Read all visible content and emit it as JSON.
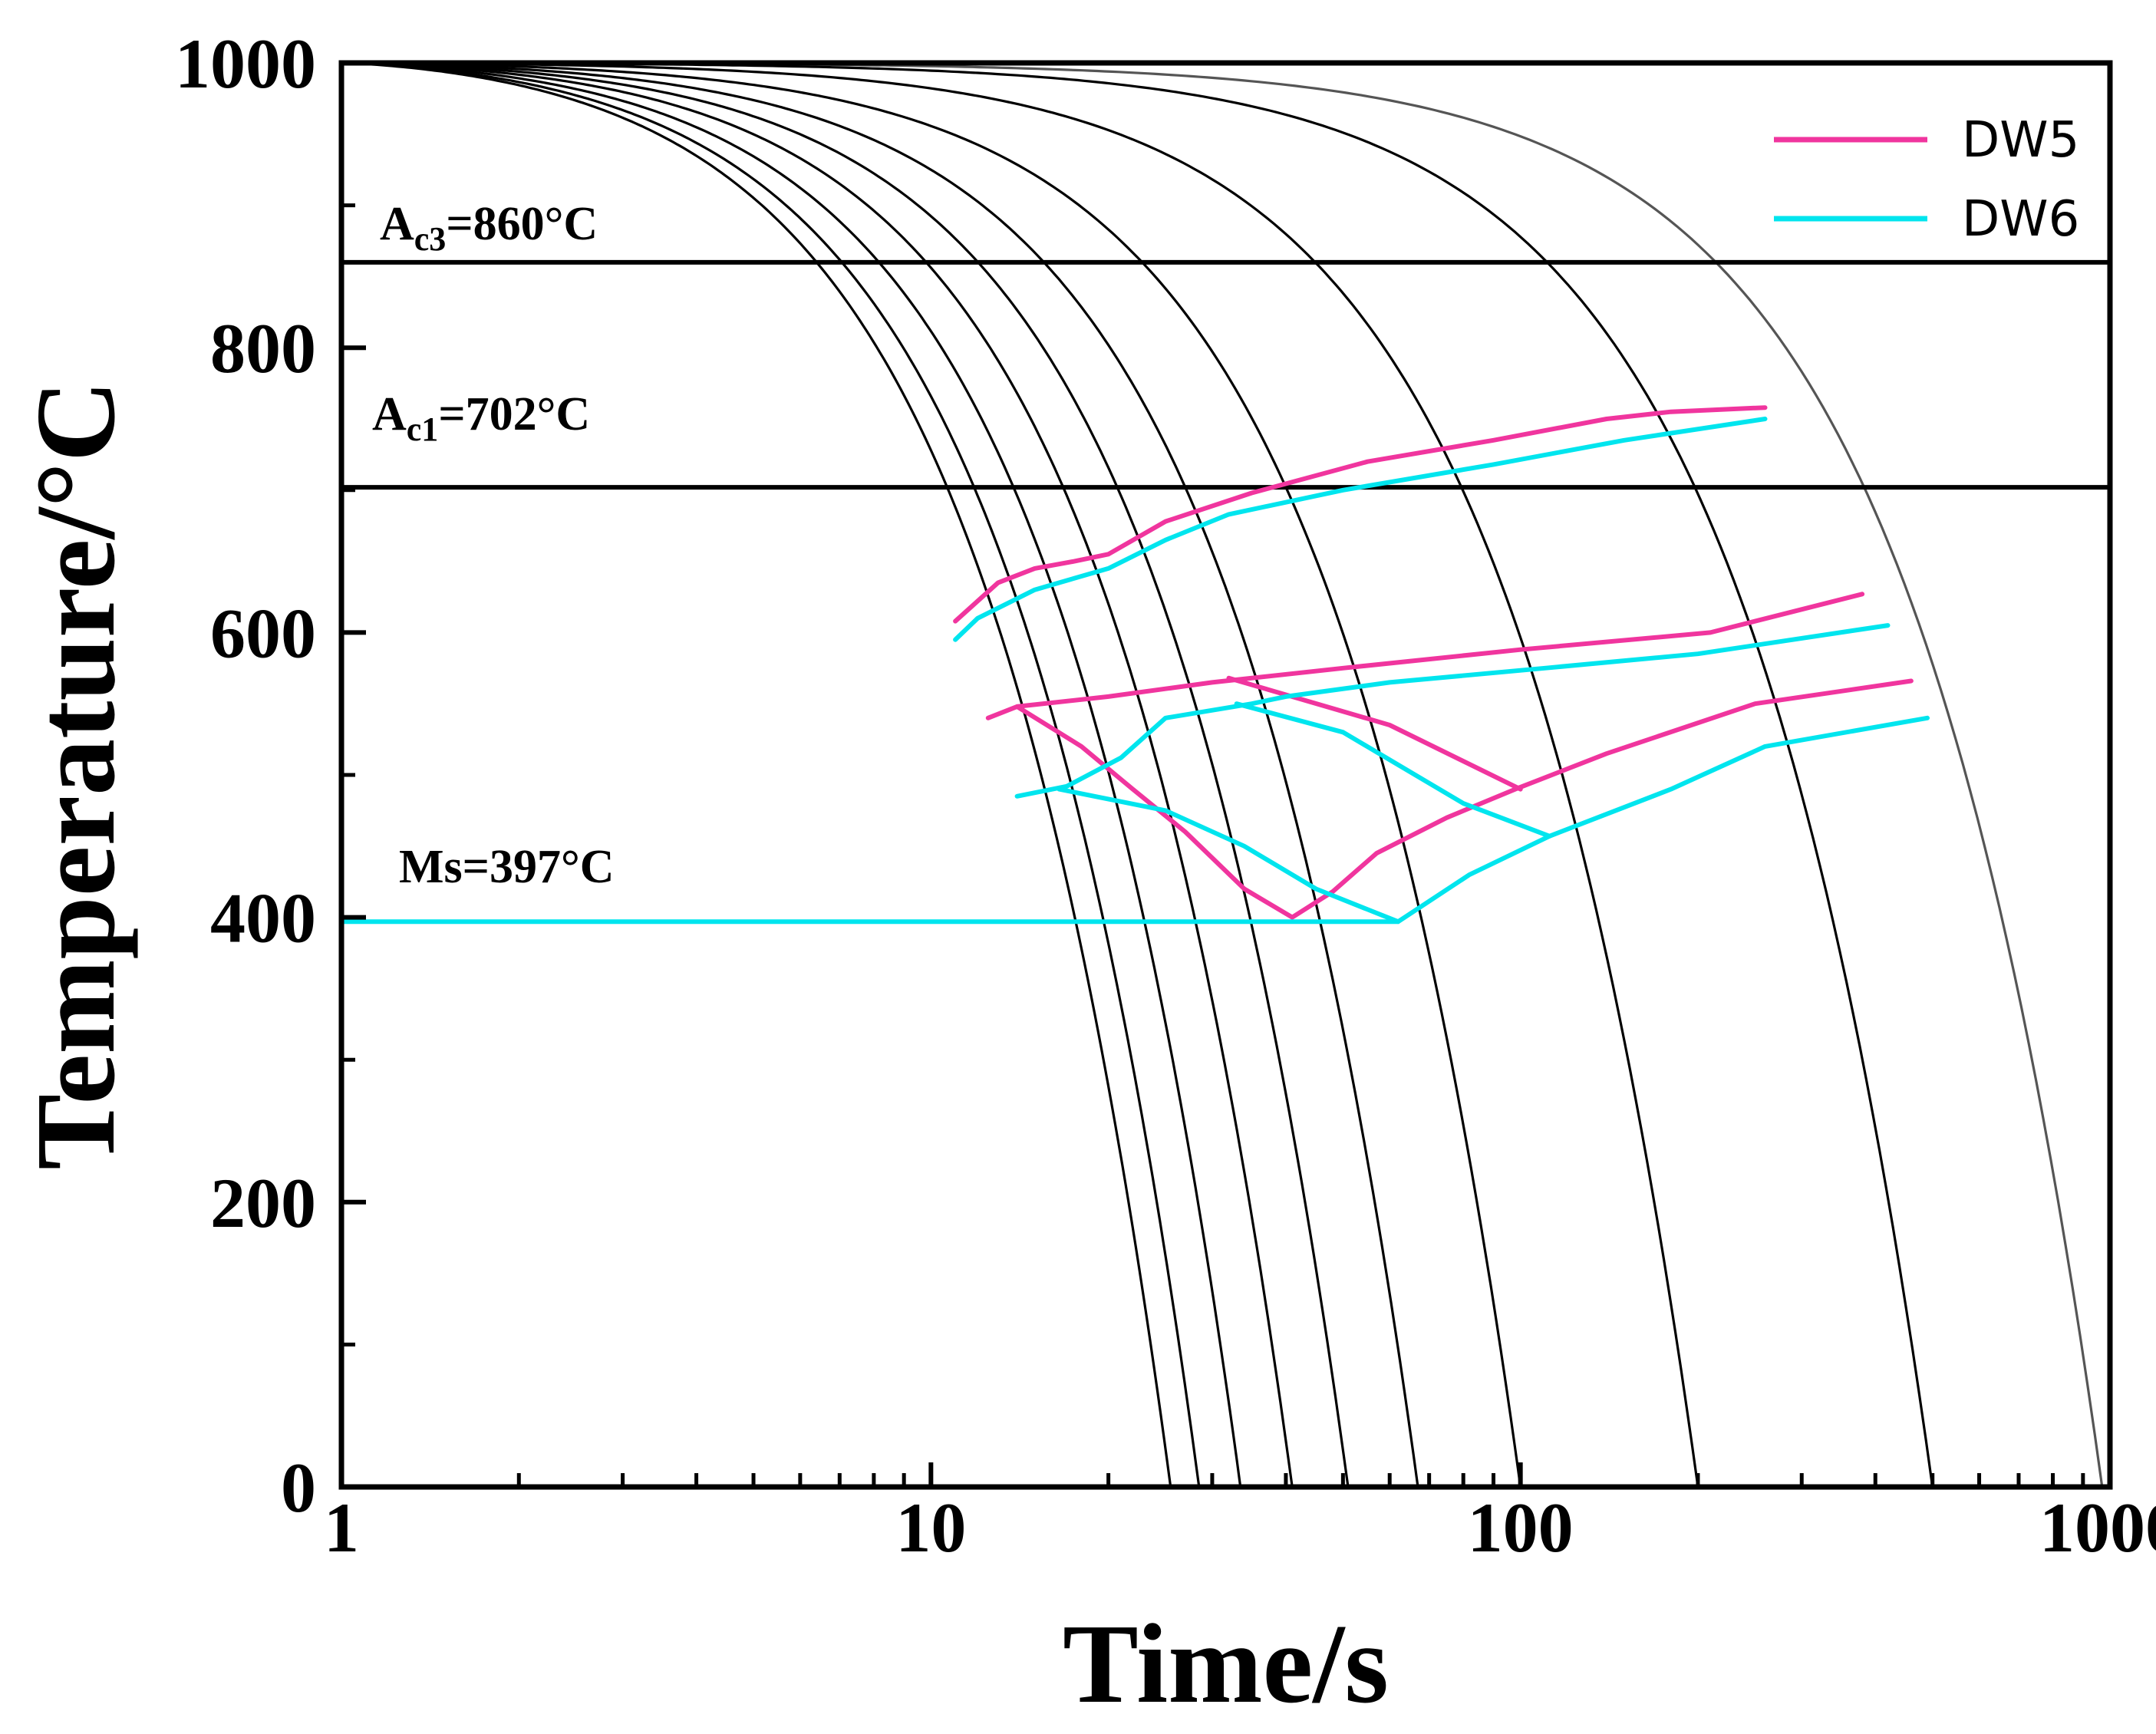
{
  "chart_data": {
    "type": "line",
    "title": "",
    "xlabel": "Time/s",
    "ylabel": "Temperature/°C",
    "xscale": "log",
    "xlim": [
      1,
      1000
    ],
    "ylim": [
      0,
      1000
    ],
    "xticks": [
      1,
      10,
      100,
      1000
    ],
    "xtick_labels": [
      "1",
      "10",
      "100",
      "1000"
    ],
    "yticks": [
      0,
      200,
      400,
      600,
      800,
      1000
    ],
    "ytick_labels": [
      "0",
      "200",
      "400",
      "600",
      "800",
      "1000"
    ],
    "legend_position": "top-right",
    "reference_lines": [
      {
        "name": "Ac3",
        "prefix": "A",
        "sub": "c3",
        "suffix": "=860°C",
        "value": 860
      },
      {
        "name": "Ac1",
        "prefix": "A",
        "sub": "c1",
        "suffix": "=702°C",
        "value": 702
      },
      {
        "name": "Ms",
        "prefix": "Ms",
        "sub": "",
        "suffix": "=397°C",
        "value": 397,
        "color": "#00e5ee"
      }
    ],
    "cooling_curves": {
      "start_temp": 1000,
      "end_times": [
        25.5,
        28.5,
        33.5,
        41,
        51,
        67,
        100,
        200,
        500,
        970
      ],
      "colors": [
        "#000000",
        "#000000",
        "#000000",
        "#000000",
        "#000000",
        "#000000",
        "#000000",
        "#000000",
        "#000000",
        "#555555"
      ]
    },
    "series": [
      {
        "name": "DW5",
        "color": "#f0359e",
        "segments": [
          [
            [
              11,
              608
            ],
            [
              13,
              635
            ],
            [
              15,
              645
            ],
            [
              17.5,
              650
            ],
            [
              20,
              655
            ],
            [
              25,
              678
            ],
            [
              35,
              698
            ],
            [
              55,
              720
            ],
            [
              90,
              735
            ],
            [
              140,
              750
            ],
            [
              180,
              755
            ],
            [
              260,
              758
            ]
          ],
          [
            [
              12.5,
              540
            ],
            [
              14,
              548
            ],
            [
              20,
              555
            ],
            [
              30,
              565
            ],
            [
              50,
              575
            ],
            [
              100,
              588
            ],
            [
              210,
              600
            ],
            [
              380,
              627
            ]
          ],
          [
            [
              14,
              548
            ],
            [
              18,
              520
            ],
            [
              22,
              490
            ],
            [
              27,
              460
            ],
            [
              34,
              420
            ],
            [
              41,
              400
            ],
            [
              48,
              418
            ],
            [
              57,
              445
            ],
            [
              75,
              470
            ],
            [
              98,
              490
            ],
            [
              140,
              515
            ],
            [
              250,
              550
            ],
            [
              460,
              566
            ]
          ],
          [
            [
              32,
              568
            ],
            [
              60,
              535
            ],
            [
              100,
              490
            ]
          ]
        ]
      },
      {
        "name": "DW6",
        "color": "#00e5ee",
        "segments": [
          [
            [
              1,
              397
            ],
            [
              62,
              397
            ]
          ],
          [
            [
              11,
              595
            ],
            [
              12,
              610
            ],
            [
              15,
              630
            ],
            [
              20,
              645
            ],
            [
              25,
              665
            ],
            [
              32,
              683
            ],
            [
              50,
              700
            ],
            [
              90,
              718
            ],
            [
              150,
              735
            ],
            [
              260,
              750
            ]
          ],
          [
            [
              14,
              485
            ],
            [
              17,
              492
            ],
            [
              21,
              512
            ],
            [
              25,
              540
            ],
            [
              35,
              550
            ],
            [
              40,
              555
            ],
            [
              60,
              565
            ],
            [
              110,
              575
            ],
            [
              200,
              585
            ],
            [
              420,
              605
            ]
          ],
          [
            [
              16.5,
              490
            ],
            [
              25,
              475
            ],
            [
              34,
              450
            ],
            [
              45,
              420
            ],
            [
              62,
              397
            ],
            [
              82,
              430
            ],
            [
              112,
              457
            ],
            [
              180,
              490
            ],
            [
              260,
              520
            ],
            [
              490,
              540
            ]
          ],
          [
            [
              33,
              550
            ],
            [
              50,
              530
            ],
            [
              80,
              480
            ],
            [
              112,
              457
            ]
          ]
        ]
      }
    ]
  }
}
